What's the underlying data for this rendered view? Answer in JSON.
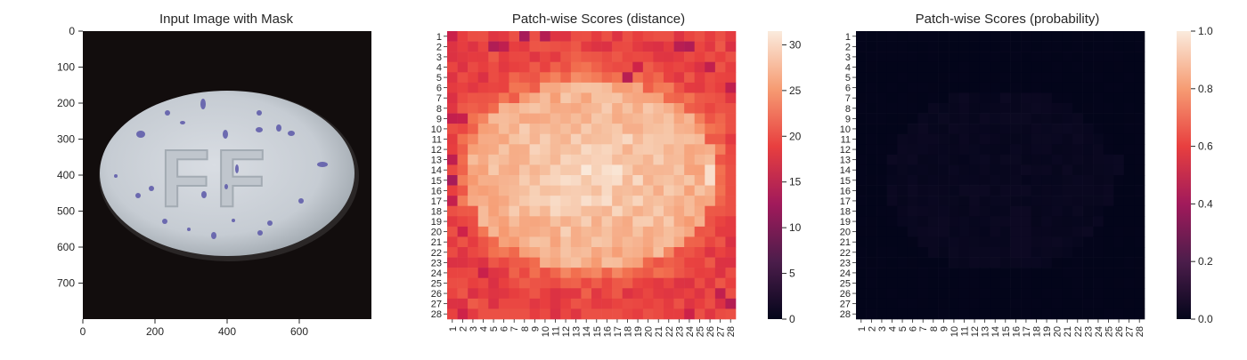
{
  "panels": [
    {
      "title": "Input Image with Mask",
      "x_ticks": [
        "0",
        "200",
        "400",
        "600"
      ],
      "y_ticks": [
        "0",
        "100",
        "200",
        "300",
        "400",
        "500",
        "600",
        "700"
      ],
      "pill_text": "FF"
    },
    {
      "title": "Patch-wise Scores (distance)",
      "colorbar_ticks": [
        "0",
        "5",
        "10",
        "15",
        "20",
        "25",
        "30"
      ]
    },
    {
      "title": "Patch-wise Scores (probability)",
      "colorbar_ticks": [
        "0.0",
        "0.2",
        "0.4",
        "0.6",
        "0.8",
        "1.0"
      ]
    }
  ],
  "chart_data": [
    {
      "type": "image",
      "title": "Input Image with Mask",
      "xlim": [
        0,
        800
      ],
      "ylim": [
        800,
        0
      ],
      "x_ticks": [
        0,
        200,
        400,
        600
      ],
      "y_ticks": [
        0,
        100,
        200,
        300,
        400,
        500,
        600,
        700
      ],
      "content": "white oval tablet embossed FF with blue specks on dark background"
    },
    {
      "type": "heatmap",
      "title": "Patch-wise Scores (distance)",
      "rows": 28,
      "cols": 28,
      "tick_labels": [
        "1",
        "2",
        "3",
        "4",
        "5",
        "6",
        "7",
        "8",
        "9",
        "10",
        "11",
        "12",
        "13",
        "14",
        "15",
        "16",
        "17",
        "18",
        "19",
        "20",
        "21",
        "22",
        "23",
        "24",
        "25",
        "26",
        "27",
        "28"
      ],
      "colorbar_range": [
        0,
        31.5
      ],
      "colorbar_ticks": [
        0,
        5,
        10,
        15,
        20,
        25,
        30
      ],
      "colormap": "rocket",
      "pattern": "low scores (approx 14-20) at the border rows/columns, high scores (approx 25-31) in the oval interior; max near row 14 col 17 and col 26",
      "edge_low_cells": [
        [
          1,
          1
        ],
        [
          2,
          5
        ],
        [
          2,
          6
        ],
        [
          1,
          8
        ],
        [
          1,
          10
        ],
        [
          2,
          23
        ],
        [
          2,
          24
        ],
        [
          6,
          28
        ],
        [
          4,
          19
        ],
        [
          5,
          18
        ],
        [
          4,
          26
        ],
        [
          9,
          1
        ],
        [
          9,
          2
        ],
        [
          13,
          1
        ],
        [
          15,
          1
        ],
        [
          17,
          1
        ],
        [
          20,
          2
        ],
        [
          24,
          4
        ],
        [
          26,
          27
        ],
        [
          27,
          28
        ],
        [
          28,
          2
        ],
        [
          28,
          24
        ]
      ]
    },
    {
      "type": "heatmap",
      "title": "Patch-wise Scores (probability)",
      "rows": 28,
      "cols": 28,
      "tick_labels": [
        "1",
        "2",
        "3",
        "4",
        "5",
        "6",
        "7",
        "8",
        "9",
        "10",
        "11",
        "12",
        "13",
        "14",
        "15",
        "16",
        "17",
        "18",
        "19",
        "20",
        "21",
        "22",
        "23",
        "24",
        "25",
        "26",
        "27",
        "28"
      ],
      "colorbar_range": [
        0.0,
        1.0
      ],
      "colorbar_ticks": [
        0.0,
        0.2,
        0.4,
        0.6,
        0.8,
        1.0
      ],
      "colormap": "rocket",
      "pattern": "almost all cells near 0.0; faint values (approx 0.01-0.03) in the central region"
    }
  ]
}
